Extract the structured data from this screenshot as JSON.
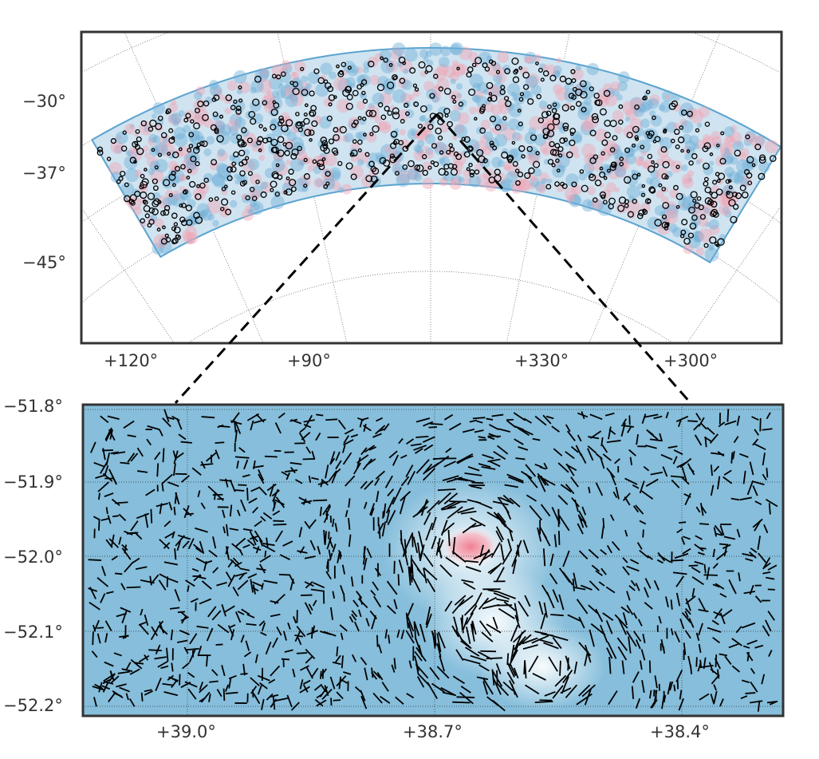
{
  "chart_data": [
    {
      "type": "scatter",
      "panel": "top",
      "description_label": "",
      "y_tick_labels": [
        "−30°",
        "−37°",
        "−45°"
      ],
      "x_tick_labels": [
        "+120°",
        "+90°",
        "+330°",
        "+300°"
      ],
      "colors": {
        "low": "#2b83ba",
        "high": "#f4a6b5",
        "markers": "#000000"
      }
    },
    {
      "type": "heatmap",
      "panel": "bottom",
      "y_tick_labels": [
        "−51.8°",
        "−51.9°",
        "−52.0°",
        "−52.1°",
        "−52.2°"
      ],
      "x_tick_labels": [
        "+39.0°",
        "+38.7°",
        "+38.4°"
      ],
      "xlim": [
        39.15,
        38.3
      ],
      "ylim": [
        -52.21,
        -51.8
      ],
      "colors": {
        "background": "#86bedb",
        "peak": "#f08a9a",
        "whiskers": "#000000"
      }
    }
  ]
}
